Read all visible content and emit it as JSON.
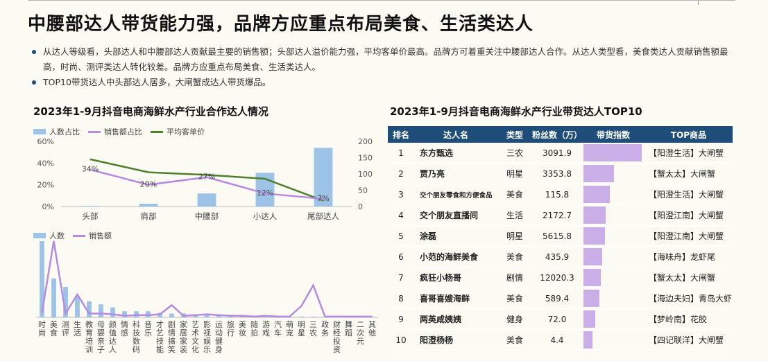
{
  "title": "中腰部达人带货能力强，品牌方应重点布局美食、生活类达人",
  "bullets": [
    "从达人等级看，头部达人和中腰部达人贡献最主要的销售额；头部达人溢价能力强，平均客单价最高。品牌方可着重关注中腰部达人合作。从达人类型看，美食类达人贡献销售额最高，时尚、测评类达人转化较差。品牌方应重点布局美食、生活类达人。",
    "TOP10带货达人中头部达人居多，大闸蟹成达人带货爆品。"
  ],
  "chart_data": [
    {
      "type": "bar",
      "title": "2023年1-9月抖音电商海鲜水产行业合作达人情况",
      "categories": [
        "头部",
        "肩部",
        "中腰部",
        "小达人",
        "尾部达人"
      ],
      "series": [
        {
          "name": "人数占比",
          "type": "bar",
          "axis": "left",
          "values": [
            0.5,
            2.5,
            12,
            31,
            54
          ]
        },
        {
          "name": "销售额占比",
          "type": "line",
          "axis": "left",
          "values": [
            34,
            20,
            27,
            12,
            7
          ],
          "labels": [
            "34%",
            "20%",
            "27%",
            "12%",
            "7%"
          ]
        },
        {
          "name": "平均客单价",
          "type": "line",
          "axis": "right",
          "values": [
            145,
            105,
            97,
            85,
            18
          ]
        }
      ],
      "y_left": {
        "min": 0,
        "max": 60,
        "ticks": [
          "0%",
          "20%",
          "40%",
          "60%"
        ]
      },
      "y_right": {
        "min": 0,
        "max": 200,
        "ticks": [
          "0",
          "50",
          "100",
          "150",
          "200"
        ]
      },
      "legend": "top-left",
      "colors": {
        "bar": "#9dc3e6",
        "sales": "#b58ae0",
        "price": "#4e7f2b"
      }
    },
    {
      "type": "bar",
      "categories": [
        "时尚",
        "美食",
        "测评",
        "生活",
        "教育培训",
        "母婴亲子",
        "颜值达人",
        "情感",
        "科技数码",
        "音乐",
        "才艺技能",
        "剧情搞笑",
        "家居家装",
        "艺术文化",
        "影视娱乐",
        "运动健身",
        "旅行",
        "美妆",
        "随拍",
        "游戏",
        "汽车",
        "萌宠",
        "明星",
        "三农",
        "政务",
        "财经投资",
        "舞蹈",
        "二次元",
        "其他"
      ],
      "series": [
        {
          "name": "人数",
          "type": "bar",
          "values": [
            100,
            51,
            40,
            28,
            21,
            17,
            13,
            8,
            8,
            8,
            6,
            5,
            5,
            4,
            4,
            3,
            2,
            2,
            2,
            2,
            1,
            1,
            1,
            1,
            0.5,
            0.5,
            0.5,
            0.5,
            0.5
          ]
        },
        {
          "name": "销售额",
          "type": "line",
          "values": [
            6,
            100,
            5,
            30,
            5,
            5,
            4,
            2,
            3,
            3,
            4,
            16,
            2,
            3,
            4,
            3,
            2,
            2,
            1,
            2,
            1,
            1,
            15,
            42,
            1,
            1,
            1,
            1,
            1
          ]
        }
      ],
      "legend": "top-left",
      "colors": {
        "bar": "#9dc3e6",
        "line": "#b58ae0"
      }
    }
  ],
  "top10": {
    "title": "2023年1-9月抖音电商海鲜水产行业带货达人TOP10",
    "headers": [
      "排名",
      "达人名",
      "类型",
      "粉丝数（万）",
      "带货指数",
      "TOP商品"
    ],
    "rows": [
      {
        "rank": "1",
        "name": "东方甄选",
        "type": "三农",
        "fans": "3091.9",
        "index": 100,
        "product": "【阳澄生活】大闸蟹"
      },
      {
        "rank": "2",
        "name": "贾乃亮",
        "type": "明星",
        "fans": "3353.8",
        "index": 52,
        "product": "【蟹太太】大闸蟹"
      },
      {
        "rank": "3",
        "name": "交个朋友零食和方便食品",
        "type": "美食",
        "fans": "115.8",
        "index": 45,
        "product": "【阳澄生活】大闸蟹"
      },
      {
        "rank": "4",
        "name": "交个朋友直播间",
        "type": "生活",
        "fans": "2172.7",
        "index": 38,
        "product": "【阳澄江南】大闸蟹"
      },
      {
        "rank": "5",
        "name": "涂磊",
        "type": "明星",
        "fans": "5615.8",
        "index": 37,
        "product": "【阳澄江南】大闸蟹"
      },
      {
        "rank": "6",
        "name": "小范的海鲜美食",
        "type": "美食",
        "fans": "435.9",
        "index": 32,
        "product": "【海味舟】龙虾尾"
      },
      {
        "rank": "7",
        "name": "疯狂小杨哥",
        "type": "剧情",
        "fans": "12020.3",
        "index": 30,
        "product": "【蟹太太】大闸蟹"
      },
      {
        "rank": "8",
        "name": "喜哥喜嫂海鲜",
        "type": "美食",
        "fans": "589.4",
        "index": 27,
        "product": "【海边夫妇】青岛大虾"
      },
      {
        "rank": "9",
        "name": "两英咸姨姨",
        "type": "健身",
        "fans": "72.0",
        "index": 20,
        "product": "【梦岭南】花胶"
      },
      {
        "rank": "10",
        "name": "阳澄杨杨",
        "type": "美食",
        "fans": "4.4",
        "index": 16,
        "product": "【四记联洋】大闸蟹"
      }
    ]
  }
}
